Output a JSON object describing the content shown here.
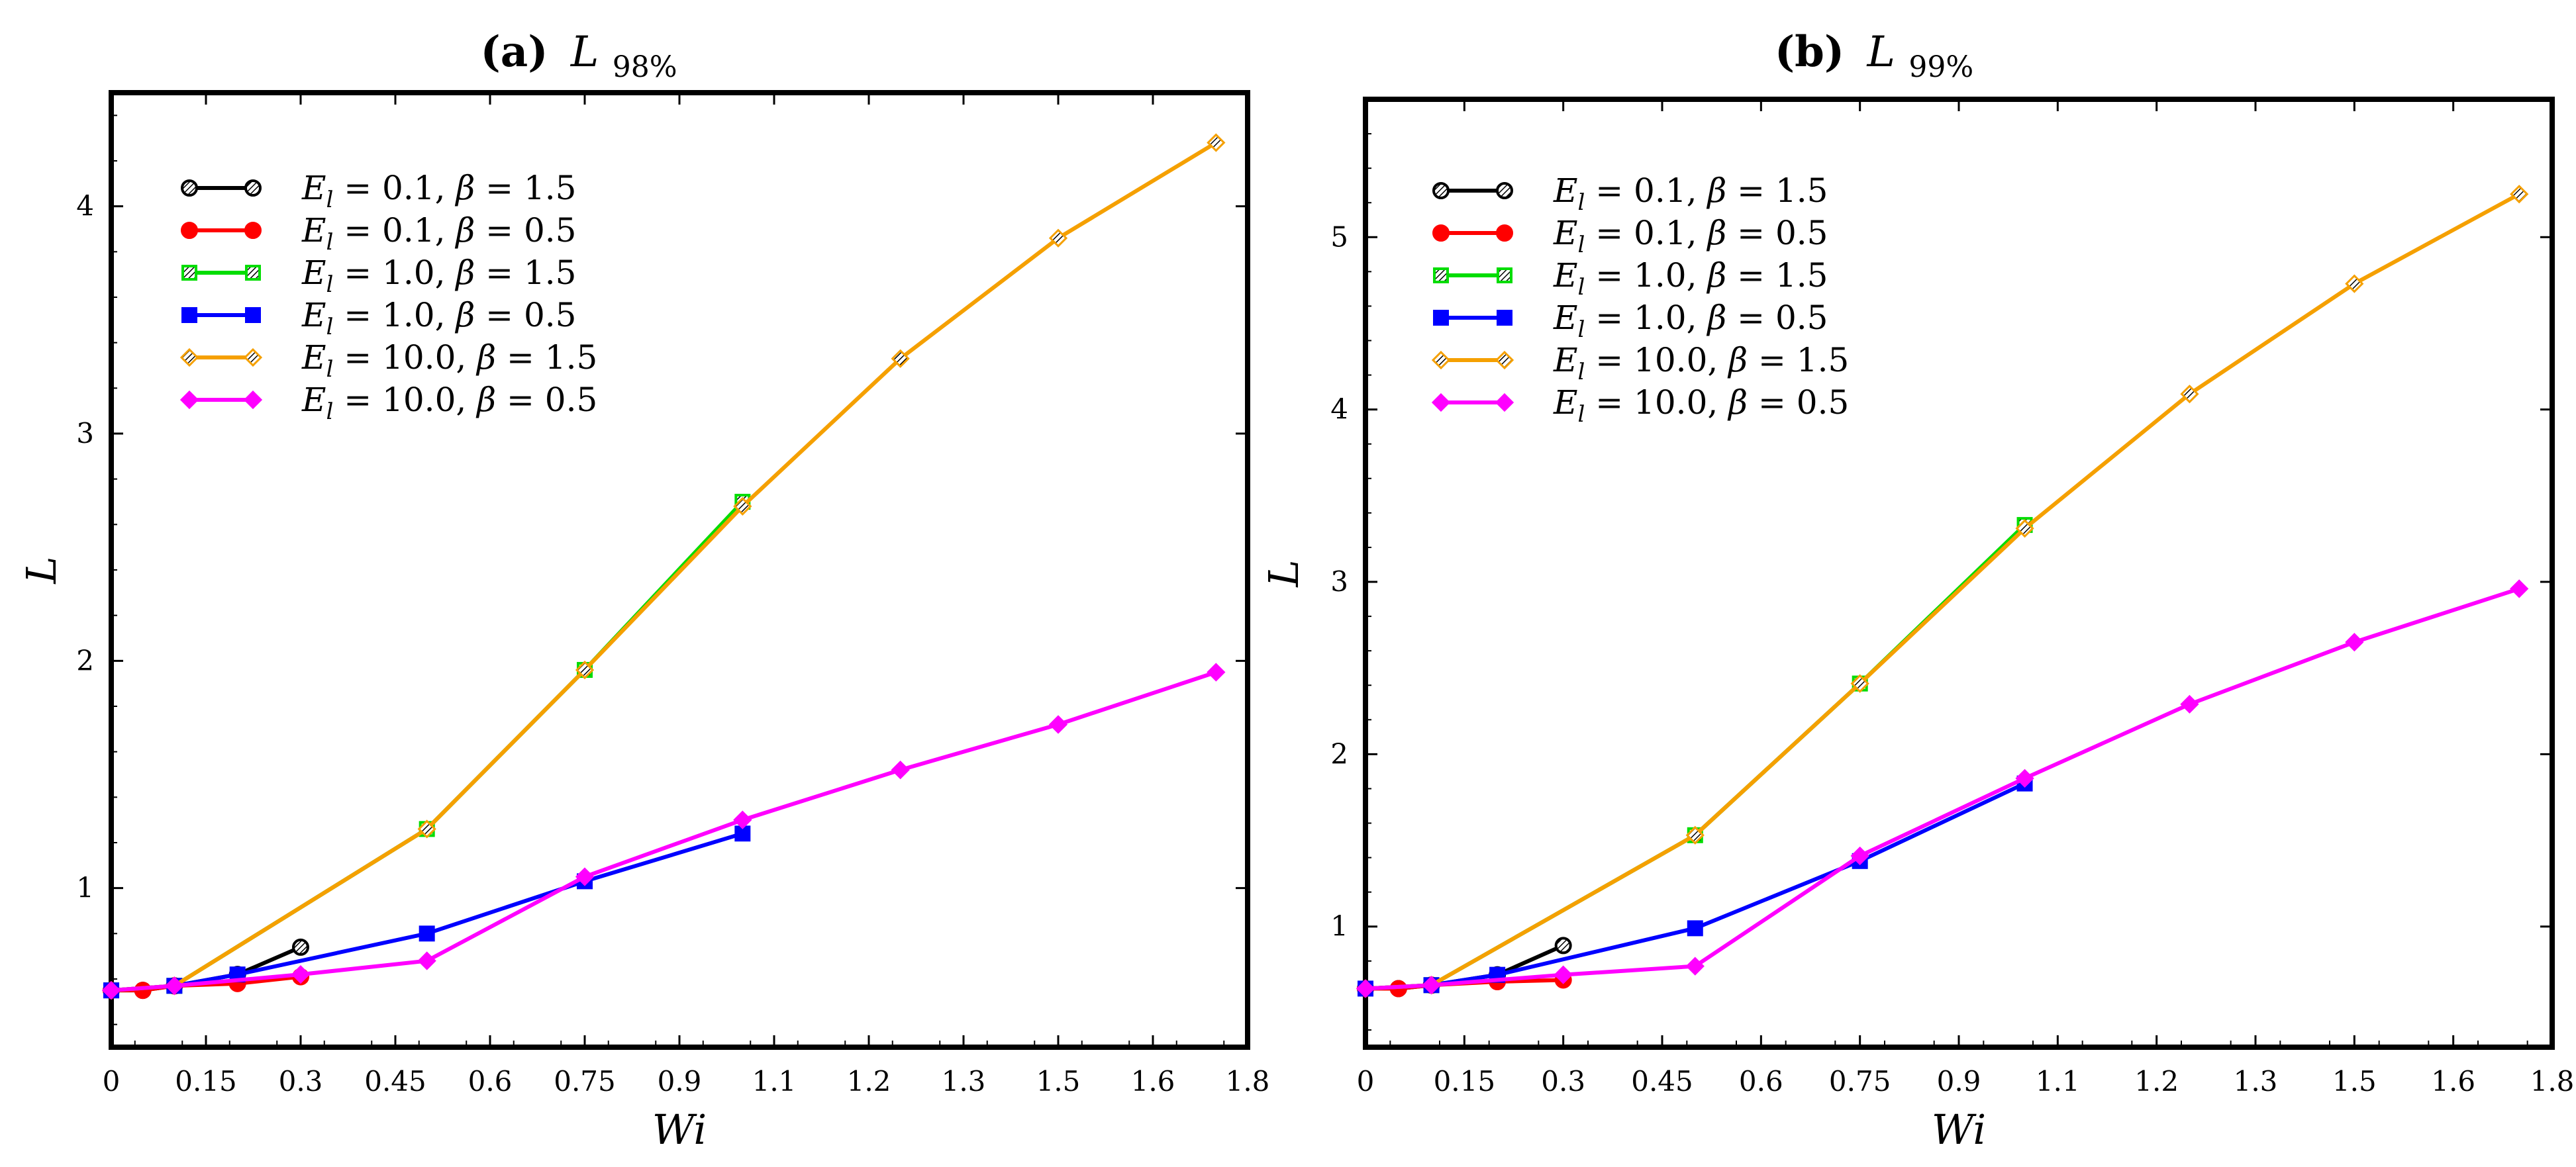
{
  "chart_data": [
    {
      "type": "line",
      "panel": "a",
      "title_prefix": "(a)",
      "title_symbol": "L",
      "title_subscript": "98%",
      "xlabel": "Wi",
      "ylabel": "L",
      "xlim": [
        0,
        1.8
      ],
      "ylim": [
        0.3,
        4.5
      ],
      "x_ticks": [
        0,
        0.15,
        0.3,
        0.45,
        0.6,
        0.75,
        0.9,
        1.1,
        1.2,
        1.3,
        1.5,
        1.6,
        1.8
      ],
      "x_tick_labels": [
        "0",
        "0.15",
        "0.3",
        "0.45",
        "0.6",
        "0.75",
        "0.9",
        "1.1",
        "1.2",
        "1.3",
        "1.5",
        "1.6",
        "1.8"
      ],
      "y_ticks": [
        1,
        2,
        3,
        4
      ],
      "y_tick_labels": [
        "1",
        "2",
        "3",
        "4"
      ],
      "legend_position": "top-left",
      "series": [
        {
          "name_el": "0.1",
          "name_beta": "1.5",
          "color": "#000000",
          "marker": "circle-hatched",
          "x": [
            0.0,
            0.05,
            0.1,
            0.2,
            0.3
          ],
          "y": [
            0.55,
            0.55,
            0.57,
            0.62,
            0.74
          ]
        },
        {
          "name_el": "0.1",
          "name_beta": "0.5",
          "color": "#ff0000",
          "marker": "circle",
          "x": [
            0.0,
            0.05,
            0.1,
            0.2,
            0.3
          ],
          "y": [
            0.55,
            0.55,
            0.57,
            0.58,
            0.61
          ]
        },
        {
          "name_el": "1.0",
          "name_beta": "1.5",
          "color": "#00dd00",
          "marker": "square-hatched",
          "x": [
            0.0,
            0.1,
            0.5,
            0.75,
            1.0
          ],
          "y": [
            0.55,
            0.57,
            1.26,
            1.96,
            2.7
          ]
        },
        {
          "name_el": "1.0",
          "name_beta": "0.5",
          "color": "#0000ff",
          "marker": "square",
          "x": [
            0.0,
            0.1,
            0.2,
            0.5,
            0.75,
            1.0
          ],
          "y": [
            0.55,
            0.57,
            0.62,
            0.8,
            1.03,
            1.24
          ]
        },
        {
          "name_el": "10.0",
          "name_beta": "1.5",
          "color": "#f5a000",
          "marker": "diamond-hatched",
          "x": [
            0.0,
            0.1,
            0.5,
            0.75,
            1.0,
            1.25,
            1.5,
            1.75
          ],
          "y": [
            0.55,
            0.57,
            1.26,
            1.96,
            2.68,
            3.33,
            3.86,
            4.28
          ]
        },
        {
          "name_el": "10.0",
          "name_beta": "0.5",
          "color": "#ff00ff",
          "marker": "diamond",
          "x": [
            0.0,
            0.1,
            0.3,
            0.5,
            0.75,
            1.0,
            1.25,
            1.5,
            1.75
          ],
          "y": [
            0.55,
            0.57,
            0.62,
            0.68,
            1.05,
            1.3,
            1.52,
            1.72,
            1.95
          ]
        }
      ]
    },
    {
      "type": "line",
      "panel": "b",
      "title_prefix": "(b)",
      "title_symbol": "L",
      "title_subscript": "99%",
      "xlabel": "Wi",
      "ylabel": "L",
      "xlim": [
        0,
        1.8
      ],
      "ylim": [
        0.3,
        5.8
      ],
      "x_ticks": [
        0,
        0.15,
        0.3,
        0.45,
        0.6,
        0.75,
        0.9,
        1.1,
        1.2,
        1.3,
        1.5,
        1.6,
        1.8
      ],
      "x_tick_labels": [
        "0",
        "0.15",
        "0.3",
        "0.45",
        "0.6",
        "0.75",
        "0.9",
        "1.1",
        "1.2",
        "1.3",
        "1.5",
        "1.6",
        "1.8"
      ],
      "y_ticks": [
        1,
        2,
        3,
        4,
        5
      ],
      "y_tick_labels": [
        "1",
        "2",
        "3",
        "4",
        "5"
      ],
      "legend_position": "top-left",
      "series": [
        {
          "name_el": "0.1",
          "name_beta": "1.5",
          "color": "#000000",
          "marker": "circle-hatched",
          "x": [
            0.0,
            0.05,
            0.1,
            0.2,
            0.3
          ],
          "y": [
            0.64,
            0.64,
            0.66,
            0.72,
            0.89
          ]
        },
        {
          "name_el": "0.1",
          "name_beta": "0.5",
          "color": "#ff0000",
          "marker": "circle",
          "x": [
            0.0,
            0.05,
            0.1,
            0.2,
            0.3
          ],
          "y": [
            0.64,
            0.64,
            0.66,
            0.68,
            0.69
          ]
        },
        {
          "name_el": "1.0",
          "name_beta": "1.5",
          "color": "#00dd00",
          "marker": "square-hatched",
          "x": [
            0.0,
            0.1,
            0.5,
            0.75,
            1.0
          ],
          "y": [
            0.64,
            0.66,
            1.53,
            2.41,
            3.33
          ]
        },
        {
          "name_el": "1.0",
          "name_beta": "0.5",
          "color": "#0000ff",
          "marker": "square",
          "x": [
            0.0,
            0.1,
            0.2,
            0.5,
            0.75,
            1.0
          ],
          "y": [
            0.64,
            0.66,
            0.72,
            0.99,
            1.38,
            1.83
          ]
        },
        {
          "name_el": "10.0",
          "name_beta": "1.5",
          "color": "#f5a000",
          "marker": "diamond-hatched",
          "x": [
            0.0,
            0.1,
            0.5,
            0.75,
            1.0,
            1.25,
            1.5,
            1.75
          ],
          "y": [
            0.64,
            0.66,
            1.53,
            2.41,
            3.31,
            4.09,
            4.73,
            5.25
          ]
        },
        {
          "name_el": "10.0",
          "name_beta": "0.5",
          "color": "#ff00ff",
          "marker": "diamond",
          "x": [
            0.0,
            0.1,
            0.3,
            0.5,
            0.75,
            1.0,
            1.25,
            1.5,
            1.75
          ],
          "y": [
            0.64,
            0.66,
            0.72,
            0.77,
            1.41,
            1.86,
            2.29,
            2.65,
            2.96
          ]
        }
      ]
    }
  ]
}
